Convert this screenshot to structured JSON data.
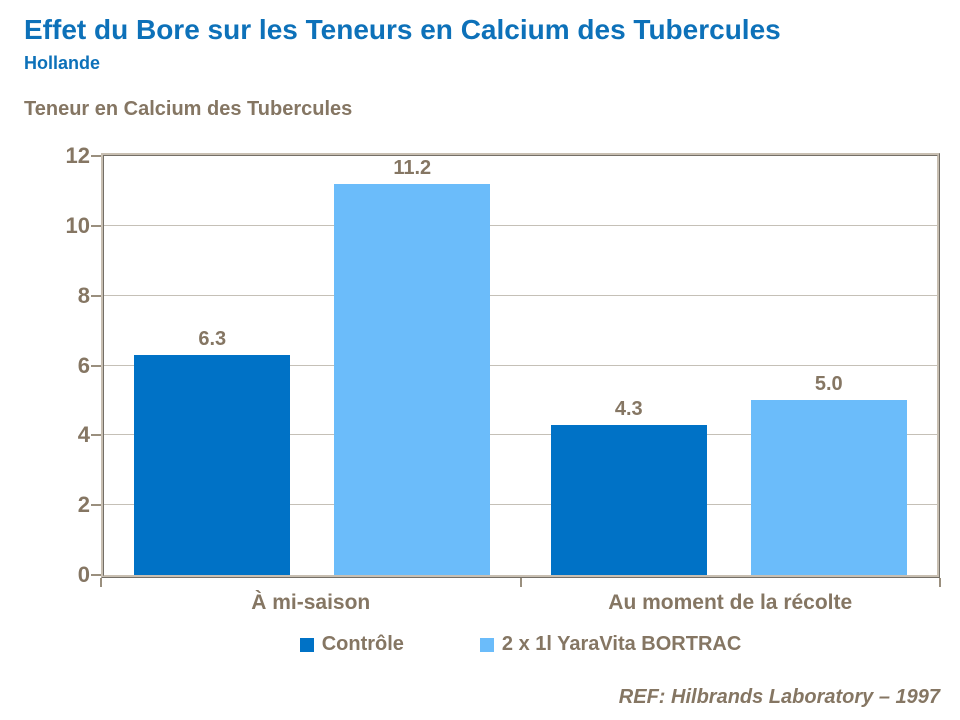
{
  "header": {
    "title": "Effet du Bore sur les Teneurs en Calcium des Tubercules",
    "subtitle": "Hollande"
  },
  "chart": {
    "title": "Teneur en Calcium des Tubercules",
    "footnote": "REF: Hilbrands Laboratory – 1997"
  },
  "chart_data": {
    "type": "bar",
    "title": "Teneur en Calcium des Tubercules",
    "categories": [
      "À mi-saison",
      "Au moment de la récolte"
    ],
    "series": [
      {
        "name": "Contrôle",
        "color": "#0072c6",
        "values": [
          6.3,
          4.3
        ]
      },
      {
        "name": "2 x 1l YaraVita BORTRAC",
        "color": "#6bbcfa",
        "values": [
          11.2,
          5.0
        ]
      }
    ],
    "xlabel": "",
    "ylabel": "",
    "ylim": [
      0,
      12
    ],
    "ytick_step": 2,
    "grid": true,
    "legend_position": "bottom"
  },
  "colors": {
    "title_blue": "#0d71b9",
    "text_brown": "#857663",
    "bar_dark_blue": "#0072c6",
    "bar_light_blue": "#6bbcfa",
    "gridline": "#c5c0b7",
    "frame": "#c8bfb2",
    "tick": "#9a8f7e"
  }
}
